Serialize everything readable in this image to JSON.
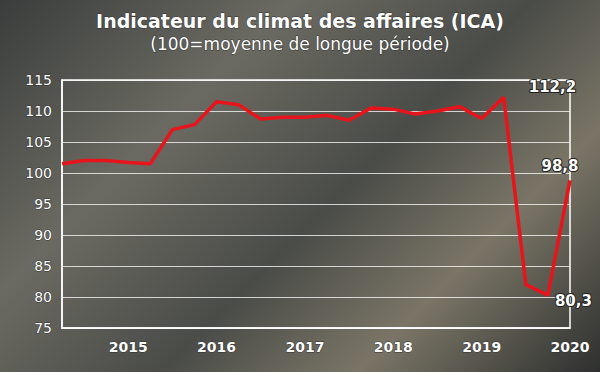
{
  "chart_data": {
    "type": "line",
    "title": "Indicateur du climat des affaires (ICA)",
    "subtitle": "(100=moyenne de longue période)",
    "categories": [
      null,
      null,
      null,
      "2015",
      null,
      null,
      null,
      "2016",
      null,
      null,
      null,
      "2017",
      null,
      null,
      null,
      "2018",
      null,
      null,
      null,
      "2019",
      null,
      null,
      null,
      "2020"
    ],
    "values": [
      101.5,
      102,
      102,
      101.7,
      101.5,
      107,
      107.8,
      111.5,
      111,
      108.7,
      109,
      109,
      109.3,
      108.5,
      110.5,
      110.3,
      109.5,
      110,
      110.7,
      108.8,
      112.2,
      82,
      80.3,
      98.8
    ],
    "value_labels": [
      null,
      null,
      null,
      null,
      null,
      null,
      null,
      null,
      null,
      null,
      null,
      null,
      null,
      null,
      null,
      null,
      null,
      null,
      null,
      null,
      "112,2",
      null,
      "80,3",
      "98,8"
    ],
    "data_labels": true,
    "color": "#e8141b",
    "ylim": [
      75,
      115
    ],
    "yticks": [
      75,
      80,
      85,
      90,
      95,
      100,
      105,
      110,
      115
    ],
    "grid": true
  }
}
